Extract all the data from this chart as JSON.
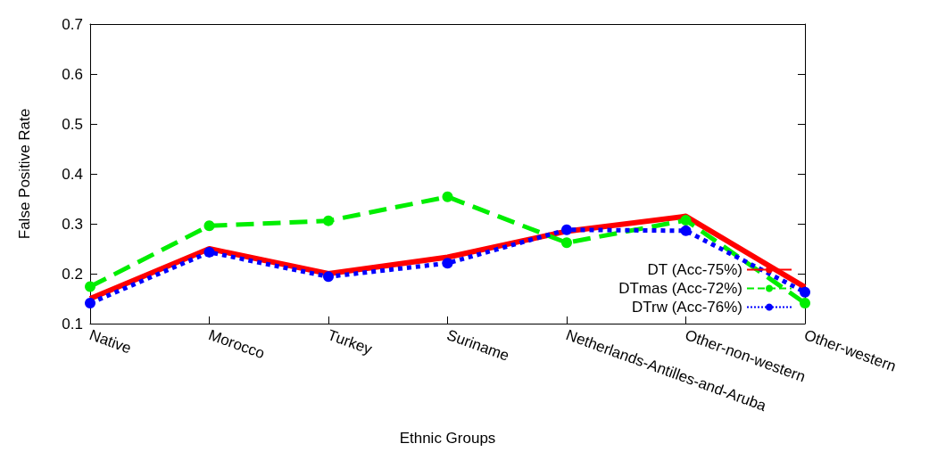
{
  "chart_data": {
    "type": "line",
    "xlabel": "Ethnic Groups",
    "ylabel": "False Positive Rate",
    "categories": [
      "Native",
      "Morocco",
      "Turkey",
      "Suriname",
      "Netherlands-Antilles-and-Aruba",
      "Other-non-western",
      "Other-western"
    ],
    "series": [
      {
        "name": "DT (Acc-75%)",
        "color": "#ff0000",
        "line_style": "solid",
        "marker": "none",
        "values": [
          0.15,
          0.25,
          0.2,
          0.233,
          0.285,
          0.315,
          0.173
        ]
      },
      {
        "name": "DTmas (Acc-72%)",
        "color": "#00ee00",
        "line_style": "dashed",
        "marker": "circle",
        "values": [
          0.174,
          0.296,
          0.306,
          0.354,
          0.262,
          0.307,
          0.141
        ]
      },
      {
        "name": "DTrw (Acc-76%)",
        "color": "#0000ff",
        "line_style": "dotted",
        "marker": "circle",
        "values": [
          0.141,
          0.243,
          0.194,
          0.221,
          0.288,
          0.286,
          0.163
        ]
      }
    ],
    "ylim": [
      0.1,
      0.7
    ],
    "yticks": [
      0.1,
      0.2,
      0.3,
      0.4,
      0.5,
      0.6,
      0.7
    ],
    "grid": false,
    "legend": "bottom right"
  }
}
